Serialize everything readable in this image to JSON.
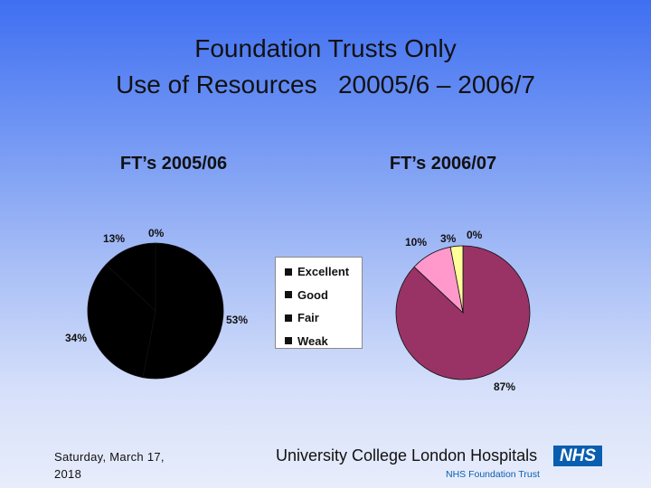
{
  "title": {
    "line1": "Foundation Trusts Only",
    "line2": "Use of Resources   20005/6 – 2006/7"
  },
  "chart_data": [
    {
      "type": "pie",
      "title": "FT’s 2005/06",
      "categories": [
        "Excellent",
        "Good",
        "Fair",
        "Weak"
      ],
      "values": [
        0,
        53,
        34,
        13
      ],
      "labels": [
        "0%",
        "53%",
        "34%",
        "13%"
      ],
      "colors": [
        "#000000",
        "#000000",
        "#000000",
        "#000000"
      ]
    },
    {
      "type": "pie",
      "title": "FT’s 2006/07",
      "categories": [
        "Excellent",
        "Good",
        "Fair",
        "Weak"
      ],
      "values": [
        0,
        87,
        10,
        3
      ],
      "labels": [
        "0%",
        "87%",
        "10%",
        "3%"
      ],
      "colors": [
        "#ffffff",
        "#993366",
        "#ff99cc",
        "#ffff99"
      ]
    }
  ],
  "legend": {
    "placement": "center",
    "items": [
      "Excellent",
      "Good",
      "Fair",
      "Weak"
    ]
  },
  "footer": {
    "date_line1": "Saturday, March 17,",
    "date_line2": "2018",
    "org": "University College London Hospitals",
    "nhs": "NHS",
    "trust": "NHS Foundation Trust"
  }
}
